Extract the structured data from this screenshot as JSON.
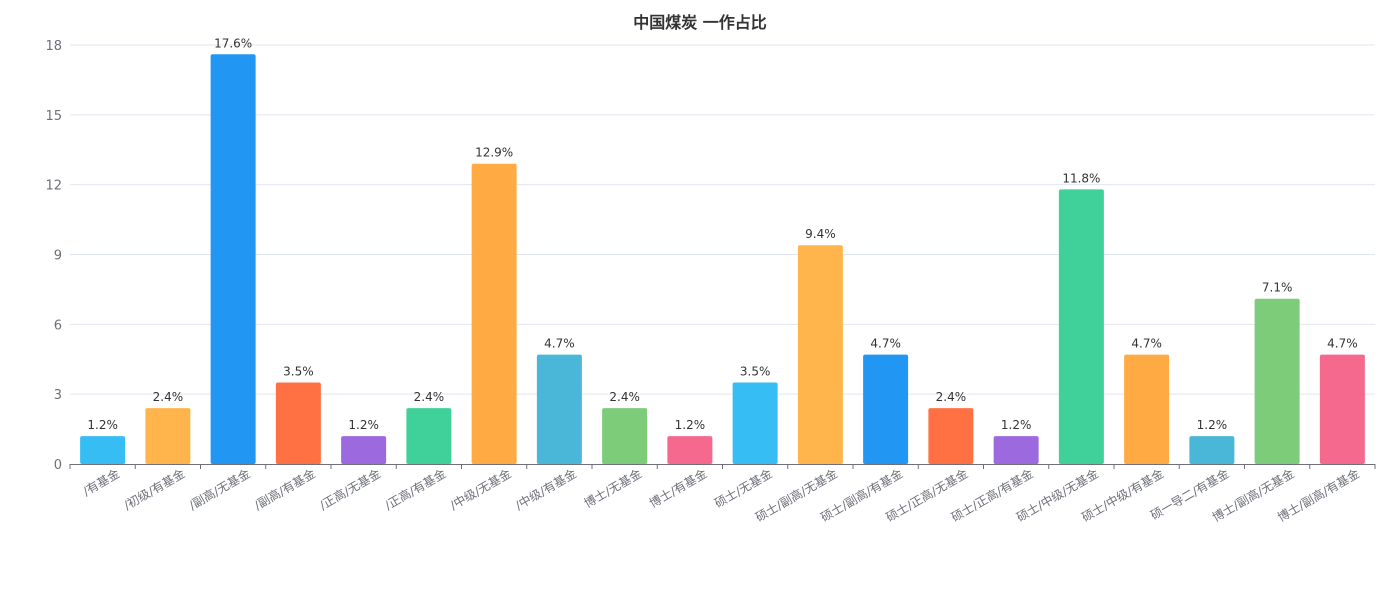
{
  "chart_data": {
    "type": "bar",
    "title": "中国煤炭 一作占比",
    "xlabel": "",
    "ylabel": "",
    "ylim": [
      0,
      18
    ],
    "yticks": [
      0,
      3,
      6,
      9,
      12,
      15,
      18
    ],
    "grid": true,
    "categories": [
      "/有基金",
      "/初级/有基金",
      "/副高/无基金",
      "/副高/有基金",
      "/正高/无基金",
      "/正高/有基金",
      "/中级/无基金",
      "/中级/有基金",
      "博士/无基金",
      "博士/有基金",
      "硕士/无基金",
      "硕士/副高/无基金",
      "硕士/副高/有基金",
      "硕士/正高/无基金",
      "硕士/正高/有基金",
      "硕士/中级/无基金",
      "硕士/中级/有基金",
      "硕一导二/有基金",
      "博士/副高/无基金",
      "博士/副高/有基金"
    ],
    "values": [
      1.2,
      2.4,
      17.6,
      3.5,
      1.2,
      2.4,
      12.9,
      4.7,
      2.4,
      1.2,
      3.5,
      9.4,
      4.7,
      2.4,
      1.2,
      11.8,
      4.7,
      1.2,
      7.1,
      4.7
    ],
    "value_labels": [
      "1.2%",
      "2.4%",
      "17.6%",
      "3.5%",
      "1.2%",
      "2.4%",
      "12.9%",
      "4.7%",
      "2.4%",
      "1.2%",
      "3.5%",
      "9.4%",
      "4.7%",
      "2.4%",
      "1.2%",
      "11.8%",
      "4.7%",
      "1.2%",
      "7.1%",
      "4.7%"
    ],
    "colors": [
      "#36bdf4",
      "#ffb54b",
      "#2196f3",
      "#ff7043",
      "#9c6ade",
      "#40d19a",
      "#ffaa42",
      "#4ab7d8",
      "#7ccc7a",
      "#f5698f",
      "#36bdf4",
      "#ffb54b",
      "#2196f3",
      "#ff7043",
      "#9c6ade",
      "#40d19a",
      "#ffaa42",
      "#4ab7d8",
      "#7ccc7a",
      "#f5698f"
    ]
  }
}
